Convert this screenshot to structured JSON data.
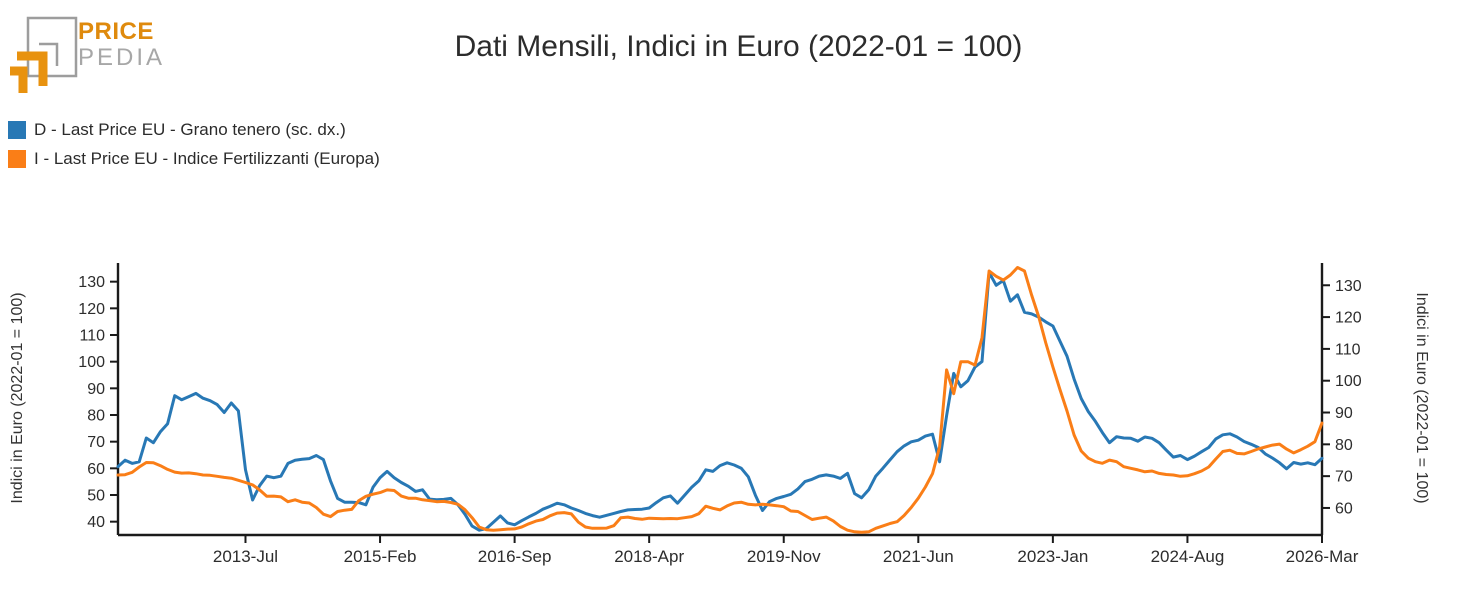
{
  "logo": {
    "price": "PRICE",
    "pedia": "PEDIA",
    "orange": "#e8920f",
    "gray": "#9d9d9d"
  },
  "title": "Dati Mensili, Indici in Euro (2022-01 = 100)",
  "chart_data": {
    "type": "line",
    "title": "Dati Mensili, Indici in Euro (2022-01 = 100)",
    "x_unit": "month",
    "x_start": "2012-01",
    "x_end": "2026-03",
    "grid": false,
    "legend_position": "top-left",
    "x_tick_labels": [
      "2013-Jul",
      "2015-Feb",
      "2016-Sep",
      "2018-Apr",
      "2019-Nov",
      "2021-Jun",
      "2023-Jan",
      "2024-Aug",
      "2026-Mar"
    ],
    "x_tick_month_indices": [
      18,
      37,
      56,
      75,
      94,
      113,
      132,
      151,
      170
    ],
    "axes": {
      "left": {
        "label": "Indici in Euro (2022-01 = 100)",
        "ticks": [
          40,
          50,
          60,
          70,
          80,
          90,
          100,
          110,
          120,
          130
        ],
        "range": [
          35,
          137
        ]
      },
      "right": {
        "label": "Indici in Euro (2022-01 = 100)",
        "ticks": [
          60,
          70,
          80,
          90,
          100,
          110,
          120,
          130
        ],
        "range": [
          51.5,
          137
        ]
      }
    },
    "series": [
      {
        "name": "D - Last Price EU - Grano tenero (sc. dx.)",
        "slug": "grano-tenero",
        "color": "#2878b5",
        "axis": "right",
        "values": [
          73,
          75,
          74,
          74.5,
          82,
          80.5,
          84,
          86.5,
          95.3,
          94,
          95,
          96,
          94.5,
          93.7,
          92.5,
          90,
          93,
          90.5,
          72,
          62.5,
          67,
          70,
          69.5,
          70,
          74,
          75,
          75.3,
          75.5,
          76.5,
          75.2,
          68.5,
          63,
          61.8,
          61.8,
          61.7,
          61,
          66.5,
          69.5,
          71.5,
          69.5,
          68,
          66.8,
          65.2,
          65.7,
          62.8,
          62.6,
          62.7,
          63,
          61,
          58,
          54.3,
          53,
          53.5,
          55.5,
          57.5,
          55.3,
          54.7,
          56,
          57.2,
          58.3,
          59.6,
          60.5,
          61.5,
          61,
          60,
          59.2,
          58.3,
          57.6,
          57.1,
          57.7,
          58.3,
          58.9,
          59.4,
          59.5,
          59.6,
          60,
          61.7,
          63.2,
          63.8,
          61.5,
          64,
          66.5,
          68.5,
          72,
          71.5,
          73.3,
          74.2,
          73.5,
          72.5,
          69.8,
          64,
          59.2,
          62,
          63,
          63.6,
          64.3,
          66,
          68.3,
          69,
          70,
          70.4,
          70,
          69.3,
          70.9,
          64.5,
          63.2,
          65.7,
          70,
          72.5,
          75.1,
          77.7,
          79.5,
          80.8,
          81.3,
          82.6,
          83.2,
          74.5,
          89,
          102.3,
          98.1,
          100,
          104.3,
          106,
          134,
          130,
          131.5,
          125,
          127,
          121.5,
          121,
          120,
          118.5,
          117.2,
          112.4,
          107.7,
          100.5,
          94.4,
          90.3,
          87.2,
          83.7,
          80.5,
          82.4,
          82,
          81.9,
          81,
          82.3,
          81.9,
          80.5,
          78.2,
          76,
          76.5,
          75.2,
          76.3,
          77.7,
          79,
          81.7,
          83,
          83.3,
          82.3,
          80.9,
          80,
          79,
          77,
          75.7,
          74.2,
          72.3,
          74.3,
          73.8,
          74.2,
          73.6,
          75.6
        ]
      },
      {
        "name": "I - Last Price EU - Indice Fertilizzanti (Europa)",
        "slug": "indice-fertilizzanti",
        "color": "#fa7e17",
        "axis": "left",
        "values": [
          57.5,
          57.6,
          58.5,
          60.5,
          62.2,
          62.1,
          61,
          59.6,
          58.6,
          58.2,
          58.3,
          58,
          57.5,
          57.4,
          57,
          56.6,
          56.3,
          55.5,
          54.7,
          53.8,
          51.9,
          49.5,
          49.6,
          49.3,
          47.5,
          48.2,
          47.3,
          47,
          45.3,
          42.8,
          41.9,
          43.8,
          44.3,
          44.6,
          47.9,
          49.5,
          50.3,
          50.9,
          51.9,
          51.7,
          49.6,
          48.8,
          48.8,
          48.2,
          47.9,
          47.5,
          47.6,
          47.2,
          46.5,
          44.5,
          41.5,
          38,
          37,
          36.8,
          37,
          37.2,
          37.3,
          38,
          39.2,
          40.2,
          40.8,
          42.2,
          43.2,
          43.4,
          42.9,
          39.8,
          38,
          37.5,
          37.5,
          37.6,
          38.5,
          41.5,
          41.7,
          41.2,
          40.9,
          41.3,
          41.2,
          41.1,
          41.2,
          41.1,
          41.5,
          41.9,
          43,
          45.8,
          45,
          44.4,
          45.9,
          47,
          47.3,
          46.5,
          46.3,
          46.5,
          46.3,
          46,
          45.6,
          44,
          43.8,
          42.3,
          40.8,
          41.3,
          41.7,
          40.3,
          38.2,
          36.8,
          36.2,
          36,
          36.2,
          37.5,
          38.4,
          39.3,
          40,
          42.3,
          45.3,
          48.8,
          53,
          58,
          68,
          96.9,
          88,
          100,
          100,
          98.7,
          109,
          134,
          132,
          130.6,
          132.5,
          135.3,
          134,
          125,
          116.9,
          107,
          98,
          89.5,
          81.5,
          72.5,
          66.5,
          63.8,
          62.5,
          61.9,
          63.1,
          62.5,
          60.6,
          60,
          59.4,
          58.7,
          59,
          58.1,
          57.7,
          57.5,
          57,
          57.2,
          58,
          59,
          60.5,
          63.5,
          66.3,
          66.8,
          65.6,
          65.4,
          66.3,
          67.3,
          68,
          68.7,
          69.1,
          67.2,
          65.8,
          67,
          68.3,
          70,
          77
        ]
      }
    ]
  }
}
